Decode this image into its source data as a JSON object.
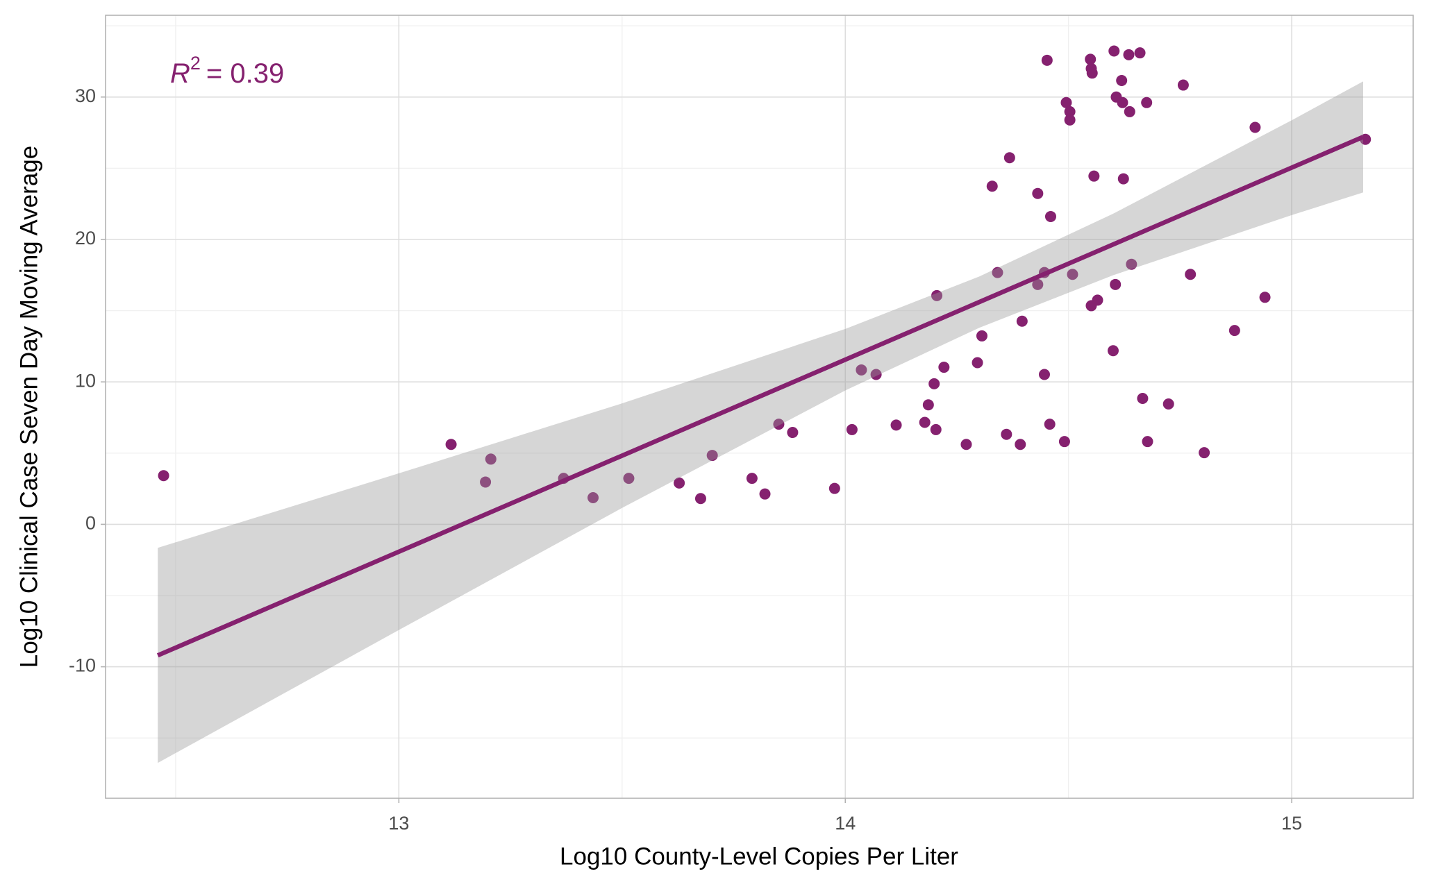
{
  "chart_data": {
    "type": "scatter",
    "x_label": "Log10 County-Level Copies Per Liter",
    "y_label": "Log10 Clinical Case Seven Day Moving Average",
    "annotation": {
      "variable": "R",
      "exponent": "2",
      "text": "= 0.39"
    },
    "color": "#85216f",
    "xlim": [
      12.343,
      15.272
    ],
    "ylim": [
      -19.23,
      35.74
    ],
    "xticks": [
      13,
      14,
      15
    ],
    "yticks": [
      -10,
      0,
      10,
      20,
      30
    ],
    "x_minor_ticks": [
      12.5,
      13.5,
      14.5
    ],
    "y_minor_ticks": [
      -15,
      -5,
      5,
      15,
      25,
      35
    ],
    "grid": true,
    "x": [
      12.473,
      13.117,
      13.194,
      13.206,
      13.369,
      13.435,
      13.515,
      13.628,
      13.676,
      13.702,
      13.791,
      13.82,
      13.851,
      13.882,
      13.976,
      14.015,
      14.036,
      14.069,
      14.114,
      14.178,
      14.186,
      14.199,
      14.203,
      14.205,
      14.221,
      14.271,
      14.296,
      14.306,
      14.329,
      14.341,
      14.361,
      14.368,
      14.392,
      14.396,
      14.431,
      14.431,
      14.446,
      14.446,
      14.452,
      14.458,
      14.46,
      14.491,
      14.495,
      14.503,
      14.503,
      14.509,
      14.549,
      14.551,
      14.553,
      14.551,
      14.557,
      14.565,
      14.6,
      14.602,
      14.605,
      14.607,
      14.619,
      14.621,
      14.623,
      14.635,
      14.637,
      14.641,
      14.66,
      14.666,
      14.675,
      14.677,
      14.724,
      14.757,
      14.773,
      14.804,
      14.872,
      14.918,
      14.94,
      15.165
    ],
    "values": [
      3.42,
      5.61,
      2.97,
      4.58,
      3.23,
      1.87,
      3.23,
      2.9,
      1.81,
      4.84,
      3.23,
      2.13,
      7.03,
      6.45,
      2.52,
      6.65,
      10.84,
      10.52,
      6.97,
      7.16,
      8.39,
      9.87,
      6.65,
      16.06,
      11.03,
      5.61,
      11.35,
      13.23,
      23.74,
      17.68,
      6.32,
      25.74,
      5.61,
      14.26,
      23.23,
      16.84,
      17.68,
      10.52,
      32.58,
      7.03,
      21.61,
      5.81,
      29.61,
      28.97,
      28.39,
      17.55,
      32.65,
      32.0,
      31.68,
      15.35,
      24.45,
      15.74,
      12.19,
      33.23,
      16.84,
      30.0,
      31.16,
      29.61,
      24.26,
      32.97,
      28.97,
      18.26,
      33.1,
      8.84,
      29.61,
      5.81,
      8.45,
      30.84,
      17.55,
      5.03,
      13.61,
      27.87,
      15.94,
      27.03
    ],
    "fit": {
      "x": [
        12.46,
        15.16
      ],
      "y": [
        -9.2,
        27.2
      ]
    },
    "band": {
      "x": [
        12.46,
        13.0,
        13.5,
        14.0,
        14.3,
        14.6,
        15.0,
        15.16
      ],
      "lower": [
        -16.75,
        -7.42,
        1.15,
        9.4,
        13.8,
        17.49,
        21.71,
        23.3
      ],
      "upper": [
        -1.65,
        3.58,
        8.49,
        13.72,
        17.4,
        21.81,
        28.37,
        31.1
      ]
    }
  }
}
